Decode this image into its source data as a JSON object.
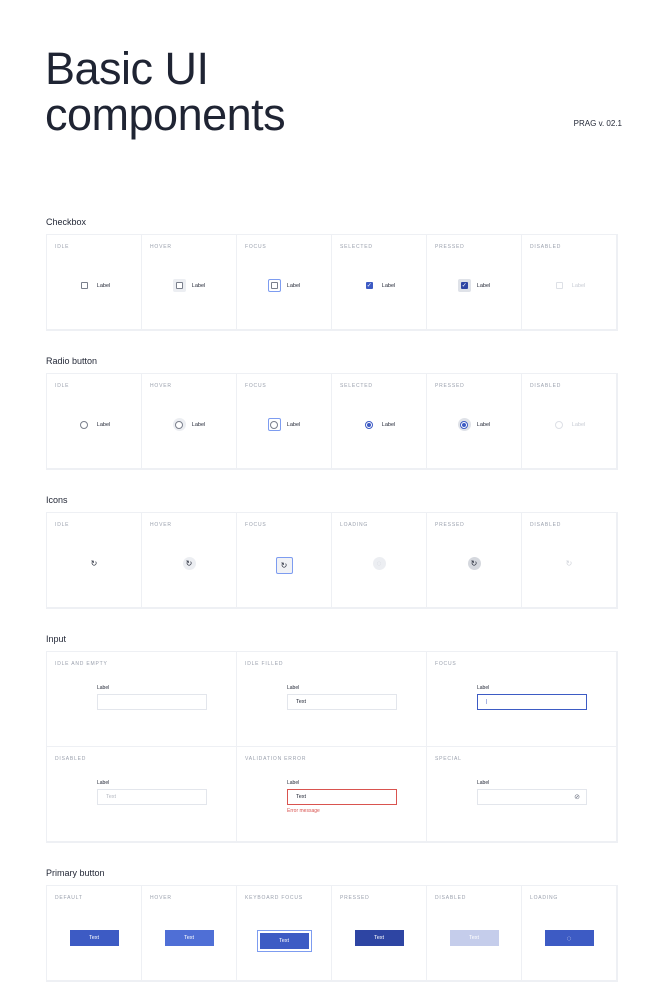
{
  "header": {
    "title_line1": "Basic UI",
    "title_line2": "components",
    "version": "PRAG v. 02.1"
  },
  "colors": {
    "accent": "#3d5bc4",
    "hover": "#4f6fd6",
    "pressed": "#2e45a3",
    "disabled": "#c5cdeb",
    "focus_ring": "#7d9cf0",
    "error": "#d9534f",
    "text": "#1f2433"
  },
  "checkbox": {
    "title": "Checkbox",
    "states": [
      {
        "label": "Idle",
        "control": "Label"
      },
      {
        "label": "Hover",
        "control": "Label"
      },
      {
        "label": "Focus",
        "control": "Label"
      },
      {
        "label": "Selected",
        "control": "Label"
      },
      {
        "label": "Pressed",
        "control": "Label"
      },
      {
        "label": "Disabled",
        "control": "Label"
      }
    ]
  },
  "radio": {
    "title": "Radio button",
    "states": [
      {
        "label": "Idle",
        "control": "Label"
      },
      {
        "label": "Hover",
        "control": "Label"
      },
      {
        "label": "Focus",
        "control": "Label"
      },
      {
        "label": "Selected",
        "control": "Label"
      },
      {
        "label": "Pressed",
        "control": "Label"
      },
      {
        "label": "Disabled",
        "control": "Label"
      }
    ]
  },
  "icons": {
    "title": "Icons",
    "icon": "refresh-icon",
    "states": [
      {
        "label": "Idle"
      },
      {
        "label": "Hover"
      },
      {
        "label": "Focus"
      },
      {
        "label": "Loading"
      },
      {
        "label": "Pressed"
      },
      {
        "label": "Disabled"
      }
    ]
  },
  "input": {
    "title": "Input",
    "states": [
      {
        "label": "Idle and empty",
        "field_label": "Label",
        "value": ""
      },
      {
        "label": "Idle filled",
        "field_label": "Label",
        "value": "Text"
      },
      {
        "label": "Focus",
        "field_label": "Label",
        "value": "|"
      },
      {
        "label": "Disabled",
        "field_label": "Label",
        "value": "Text"
      },
      {
        "label": "Validation error",
        "field_label": "Label",
        "value": "Text",
        "error": "Error message"
      },
      {
        "label": "Special",
        "field_label": "Label",
        "value": "",
        "icon": "eye-off-icon"
      }
    ]
  },
  "primary_button": {
    "title": "Primary button",
    "states": [
      {
        "label": "Default",
        "text": "Text"
      },
      {
        "label": "Hover",
        "text": "Text"
      },
      {
        "label": "Keyboard focus",
        "text": "Text"
      },
      {
        "label": "Pressed",
        "text": "Text"
      },
      {
        "label": "Disabled",
        "text": "Text"
      },
      {
        "label": "Loading",
        "text": ""
      }
    ]
  }
}
